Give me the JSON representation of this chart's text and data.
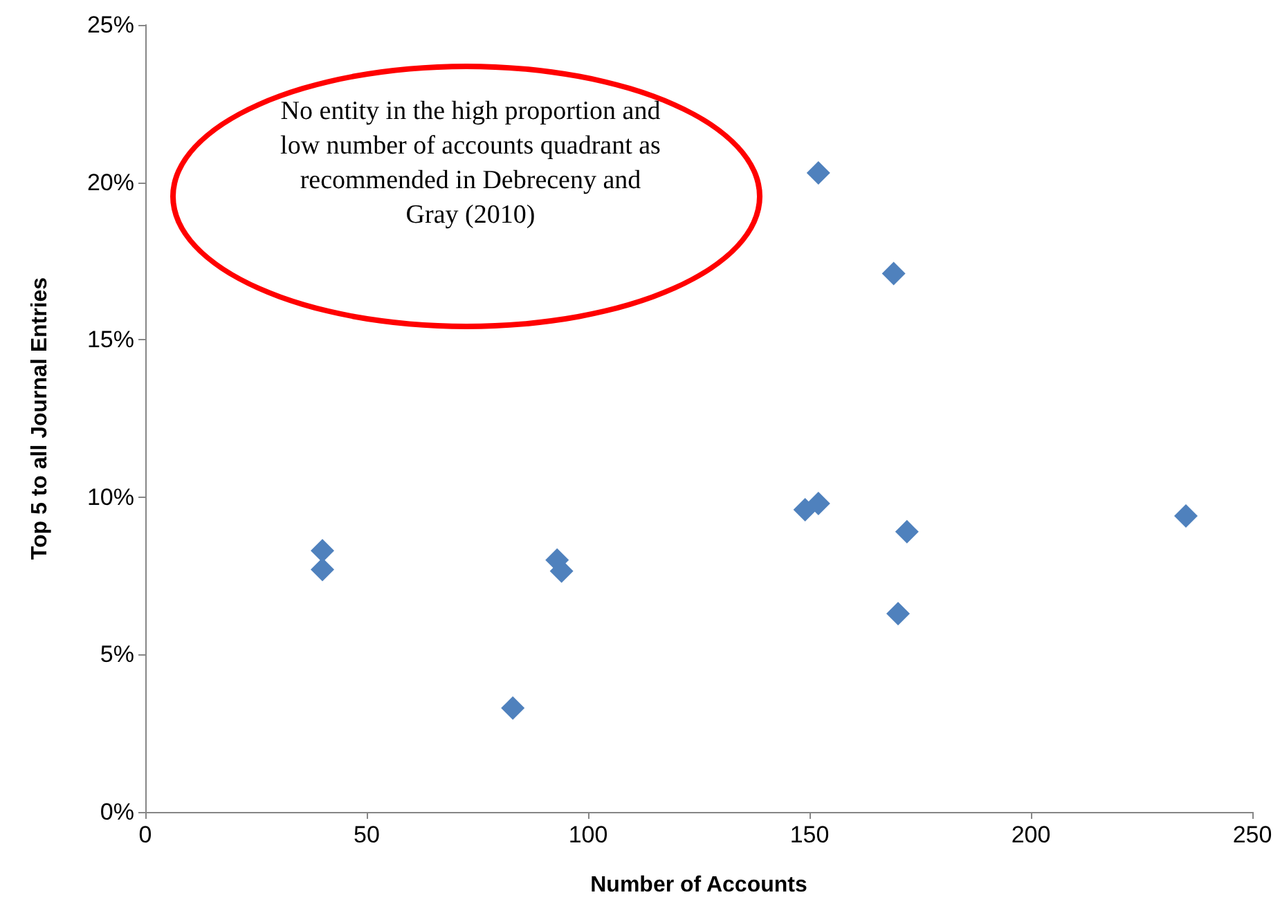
{
  "chart_data": {
    "type": "scatter",
    "xlabel": "Number of Accounts",
    "ylabel": "Top 5 to all Journal Entries",
    "annotations": [
      "No entity in the high proportion and low number of accounts quadrant as recommended in Debreceny and Gray (2010)"
    ],
    "x": [
      40,
      40,
      93,
      94,
      83,
      149,
      152,
      152,
      169,
      172,
      170,
      235
    ],
    "series": [
      {
        "color": "#4f81bd",
        "values": [
          8.3,
          7.7,
          8.0,
          7.65,
          3.3,
          9.6,
          9.8,
          20.3,
          17.1,
          8.9,
          6.3,
          9.4
        ]
      }
    ],
    "xlim": [
      0,
      250
    ],
    "xticks": [
      0,
      50,
      100,
      150,
      200,
      250
    ],
    "ylim": [
      0,
      25
    ],
    "yticks": [
      {
        "value": 0,
        "label": "0%"
      },
      {
        "value": 5,
        "label": "5%"
      },
      {
        "value": 10,
        "label": "10%"
      },
      {
        "value": 15,
        "label": "15%"
      },
      {
        "value": 20,
        "label": "20%"
      },
      {
        "value": 25,
        "label": "25%"
      }
    ],
    "marker": "diamond"
  }
}
